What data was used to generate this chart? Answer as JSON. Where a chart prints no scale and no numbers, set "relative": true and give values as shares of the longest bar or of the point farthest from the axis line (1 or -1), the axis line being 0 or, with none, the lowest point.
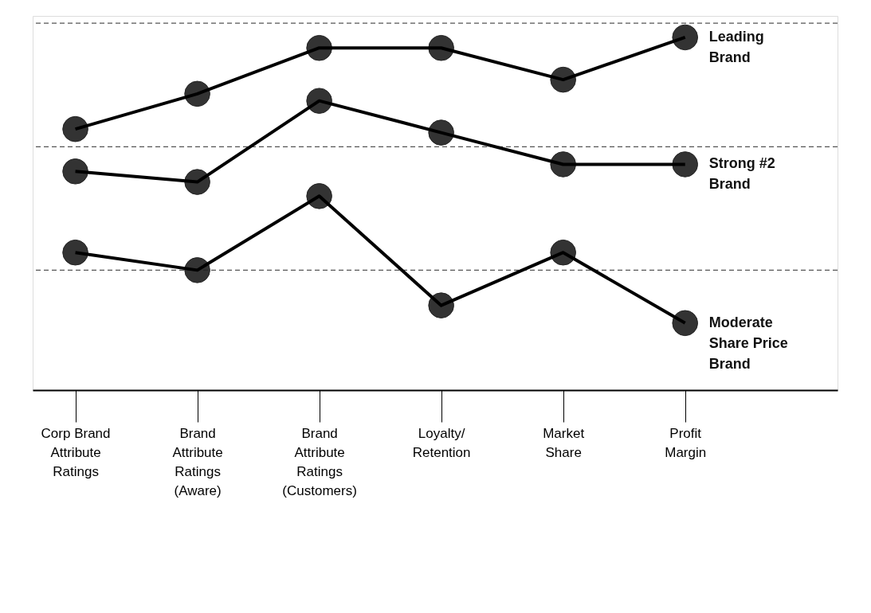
{
  "chart_data": {
    "type": "line",
    "relative": true,
    "categories": [
      "Corp Brand Attribute Ratings",
      "Brand Attribute Ratings (Aware)",
      "Brand Attribute Ratings (Customers)",
      "Loyalty/Retention",
      "Market Share",
      "Profit Margin"
    ],
    "series": [
      {
        "name": "Leading Brand",
        "color": "#222222",
        "values": [
          0.74,
          0.84,
          0.97,
          0.97,
          0.88,
          1.0
        ]
      },
      {
        "name": "Strong #2 Brand",
        "color": "#222222",
        "values": [
          0.62,
          0.59,
          0.82,
          0.73,
          0.64,
          0.64
        ]
      },
      {
        "name": "Moderate Share Price Brand",
        "color": "#222222",
        "values": [
          0.39,
          0.34,
          0.55,
          0.24,
          0.39,
          0.19
        ]
      }
    ],
    "ref_lines": [
      {
        "axis": "y",
        "value": 0.34,
        "color": "#555555",
        "line_style": "dashed"
      },
      {
        "axis": "y",
        "value": 0.69,
        "color": "#555555",
        "line_style": "dashed"
      },
      {
        "axis": "y",
        "value": 1.04,
        "color": "#555555",
        "line_style": "dashed"
      }
    ],
    "marker": "circle",
    "line_style": "solid",
    "legend": false
  }
}
